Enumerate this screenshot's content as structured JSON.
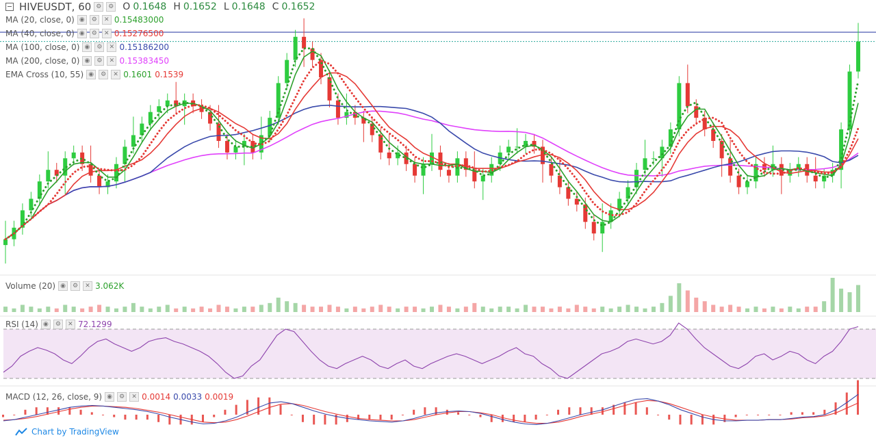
{
  "header": {
    "symbol": "HIVEUSDT, 60",
    "open_label": "O",
    "open": "0.1648",
    "high_label": "H",
    "high": "0.1652",
    "low_label": "L",
    "low": "0.1648",
    "close_label": "C",
    "close": "0.1652"
  },
  "legends": {
    "ma20": {
      "name": "MA (20, close, 0)",
      "value": "0.15483000",
      "color": "#2ca02c"
    },
    "ma40": {
      "name": "MA (40, close, 0)",
      "value": "0.15276500",
      "color": "#e53935"
    },
    "ma100": {
      "name": "MA (100, close, 0)",
      "value": "0.15186200",
      "color": "#3949ab"
    },
    "ma200": {
      "name": "MA (200, close, 0)",
      "value": "0.15383450",
      "color": "#e040fb"
    },
    "ema_cross": {
      "name": "EMA Cross (10, 55)",
      "value_fast": "0.1601",
      "value_slow": "0.1539",
      "color_fast": "#2ca02c",
      "color_slow": "#e53935"
    },
    "volume": {
      "name": "Volume (20)",
      "value": "3.062K"
    },
    "rsi": {
      "name": "RSI (14)",
      "value": "72.1299",
      "color": "#8e44ad"
    },
    "macd": {
      "name": "MACD (12, 26, close, 9)",
      "hist": "0.0014",
      "macd": "0.0033",
      "signal": "0.0019",
      "hist_color": "#e53935",
      "macd_color": "#3949ab",
      "signal_color": "#e53935"
    }
  },
  "footer": {
    "brand": "Chart by TradingView"
  },
  "colors": {
    "up": "#26a69a",
    "up_bright": "#2ecc40",
    "down": "#e53935",
    "rsi_band": "#f3e5f5"
  },
  "chart_data": [
    {
      "type": "line",
      "panel": "price",
      "symbol": "HIVEUSDT",
      "interval": "60",
      "ohlc_last": {
        "open": 0.1648,
        "high": 0.1652,
        "low": 0.1648,
        "close": 0.1652
      },
      "ylim": [
        0.128,
        0.17
      ],
      "close_series": [
        0.131,
        0.133,
        0.136,
        0.138,
        0.141,
        0.143,
        0.142,
        0.145,
        0.146,
        0.144,
        0.142,
        0.14,
        0.141,
        0.144,
        0.147,
        0.149,
        0.151,
        0.153,
        0.154,
        0.155,
        0.154,
        0.155,
        0.154,
        0.153,
        0.151,
        0.148,
        0.146,
        0.147,
        0.148,
        0.146,
        0.149,
        0.152,
        0.158,
        0.162,
        0.166,
        0.164,
        0.162,
        0.159,
        0.155,
        0.152,
        0.153,
        0.152,
        0.151,
        0.149,
        0.146,
        0.145,
        0.146,
        0.144,
        0.142,
        0.144,
        0.146,
        0.143,
        0.142,
        0.145,
        0.143,
        0.141,
        0.142,
        0.144,
        0.146,
        0.147,
        0.147,
        0.148,
        0.147,
        0.144,
        0.142,
        0.14,
        0.138,
        0.137,
        0.134,
        0.132,
        0.134,
        0.136,
        0.138,
        0.14,
        0.143,
        0.145,
        0.145,
        0.147,
        0.15,
        0.158,
        0.154,
        0.152,
        0.15,
        0.148,
        0.145,
        0.142,
        0.14,
        0.141,
        0.144,
        0.143,
        0.144,
        0.142,
        0.143,
        0.144,
        0.142,
        0.141,
        0.142,
        0.143,
        0.15,
        0.16,
        0.1652
      ],
      "ma20": {
        "name": "MA (20, close, 0)",
        "last": 0.15483
      },
      "ma40": {
        "name": "MA (40, close, 0)",
        "last": 0.152765
      },
      "ma100": {
        "name": "MA (100, close, 0)",
        "last": 0.151862
      },
      "ma200": {
        "name": "MA (200, close, 0)",
        "last": 0.1538345
      },
      "ema_cross": {
        "name": "EMA Cross (10, 55)",
        "fast": 0.1601,
        "slow": 0.1539
      },
      "horizontal_lines": [
        0.1668,
        0.1652
      ]
    },
    {
      "type": "bar",
      "panel": "volume",
      "name": "Volume (20)",
      "last": "3.062K",
      "values": [
        0.3,
        0.2,
        0.4,
        0.3,
        0.2,
        0.3,
        0.2,
        0.4,
        0.3,
        0.2,
        0.3,
        0.4,
        0.3,
        0.2,
        0.3,
        0.5,
        0.3,
        0.2,
        0.3,
        0.4,
        0.2,
        0.3,
        0.2,
        0.3,
        0.2,
        0.4,
        0.3,
        0.2,
        0.3,
        0.3,
        0.4,
        0.5,
        0.8,
        0.6,
        0.5,
        0.4,
        0.3,
        0.3,
        0.4,
        0.3,
        0.2,
        0.3,
        0.2,
        0.3,
        0.4,
        0.3,
        0.2,
        0.3,
        0.3,
        0.2,
        0.3,
        0.4,
        0.3,
        0.2,
        0.3,
        0.5,
        0.3,
        0.2,
        0.3,
        0.3,
        0.2,
        0.4,
        0.3,
        0.3,
        0.2,
        0.3,
        0.2,
        0.4,
        0.3,
        0.2,
        0.3,
        0.2,
        0.3,
        0.4,
        0.3,
        0.2,
        0.3,
        0.5,
        0.9,
        1.6,
        1.2,
        0.8,
        0.6,
        0.4,
        0.3,
        0.4,
        0.3,
        0.2,
        0.3,
        0.2,
        0.3,
        0.2,
        0.3,
        0.2,
        0.3,
        0.3,
        0.6,
        1.9,
        1.3,
        1.1,
        1.5
      ]
    },
    {
      "type": "line",
      "panel": "rsi",
      "name": "RSI (14)",
      "last": 72.1299,
      "ylim": [
        20,
        80
      ],
      "bands": [
        70,
        30
      ],
      "values": [
        35,
        40,
        48,
        52,
        55,
        53,
        50,
        45,
        42,
        48,
        55,
        60,
        62,
        58,
        55,
        52,
        55,
        60,
        62,
        63,
        60,
        58,
        55,
        52,
        48,
        42,
        35,
        30,
        32,
        40,
        45,
        55,
        65,
        70,
        68,
        60,
        52,
        45,
        40,
        38,
        42,
        45,
        48,
        45,
        40,
        38,
        42,
        45,
        40,
        38,
        42,
        45,
        48,
        50,
        48,
        45,
        42,
        45,
        48,
        52,
        55,
        50,
        48,
        42,
        38,
        32,
        30,
        35,
        40,
        45,
        50,
        52,
        55,
        60,
        62,
        60,
        58,
        60,
        65,
        75,
        70,
        62,
        55,
        50,
        45,
        40,
        38,
        42,
        48,
        50,
        45,
        48,
        52,
        50,
        45,
        42,
        48,
        52,
        60,
        70,
        72
      ]
    },
    {
      "type": "bar",
      "panel": "macd",
      "name": "MACD (12, 26, close, 9)",
      "last": {
        "histogram": 0.0014,
        "macd": 0.0033,
        "signal": 0.0019
      },
      "ylim": [
        -0.004,
        0.004
      ],
      "macd_line": [
        -0.001,
        -0.0008,
        -0.0004,
        0.0,
        0.0004,
        0.0008,
        0.0012,
        0.0014,
        0.0015,
        0.0014,
        0.0012,
        0.001,
        0.0008,
        0.0005,
        0.0001,
        -0.0004,
        -0.0008,
        -0.0012,
        -0.0015,
        -0.0014,
        -0.001,
        -0.0004,
        0.0004,
        0.0012,
        0.0019,
        0.0021,
        0.0018,
        0.0012,
        0.0006,
        0.0001,
        -0.0003,
        -0.0006,
        -0.0008,
        -0.001,
        -0.0011,
        -0.0012,
        -0.001,
        -0.0006,
        -0.0001,
        0.0003,
        0.0005,
        0.0006,
        0.0005,
        0.0002,
        -0.0003,
        -0.0008,
        -0.0012,
        -0.0015,
        -0.0016,
        -0.0014,
        -0.001,
        -0.0005,
        0.0,
        0.0004,
        0.0008,
        0.0014,
        0.002,
        0.0025,
        0.0026,
        0.0022,
        0.0016,
        0.0008,
        0.0002,
        -0.0004,
        -0.0008,
        -0.001,
        -0.001,
        -0.0009,
        -0.0009,
        -0.0008,
        -0.0008,
        -0.0006,
        -0.0004,
        -0.0003,
        0.0,
        0.0008,
        0.002,
        0.0033
      ],
      "signal_line": [
        -0.0009,
        -0.0008,
        -0.0006,
        -0.0003,
        0.0001,
        0.0005,
        0.0009,
        0.0012,
        0.0014,
        0.0014,
        0.0013,
        0.0012,
        0.001,
        0.0007,
        0.0004,
        0.0,
        -0.0004,
        -0.0008,
        -0.0012,
        -0.0013,
        -0.0012,
        -0.0008,
        -0.0002,
        0.0005,
        0.0012,
        0.0017,
        0.0018,
        0.0015,
        0.001,
        0.0005,
        0.0001,
        -0.0003,
        -0.0006,
        -0.0008,
        -0.0009,
        -0.001,
        -0.001,
        -0.0008,
        -0.0004,
        0.0,
        0.0003,
        0.0005,
        0.0005,
        0.0003,
        0.0,
        -0.0005,
        -0.0009,
        -0.0012,
        -0.0014,
        -0.0014,
        -0.0012,
        -0.0008,
        -0.0003,
        0.0001,
        0.0005,
        0.001,
        0.0015,
        0.002,
        0.0023,
        0.0022,
        0.0018,
        0.0012,
        0.0006,
        0.0,
        -0.0004,
        -0.0007,
        -0.0009,
        -0.0009,
        -0.0009,
        -0.0008,
        -0.0008,
        -0.0007,
        -0.0005,
        -0.0004,
        -0.0002,
        0.0003,
        0.0011,
        0.0019
      ]
    }
  ]
}
